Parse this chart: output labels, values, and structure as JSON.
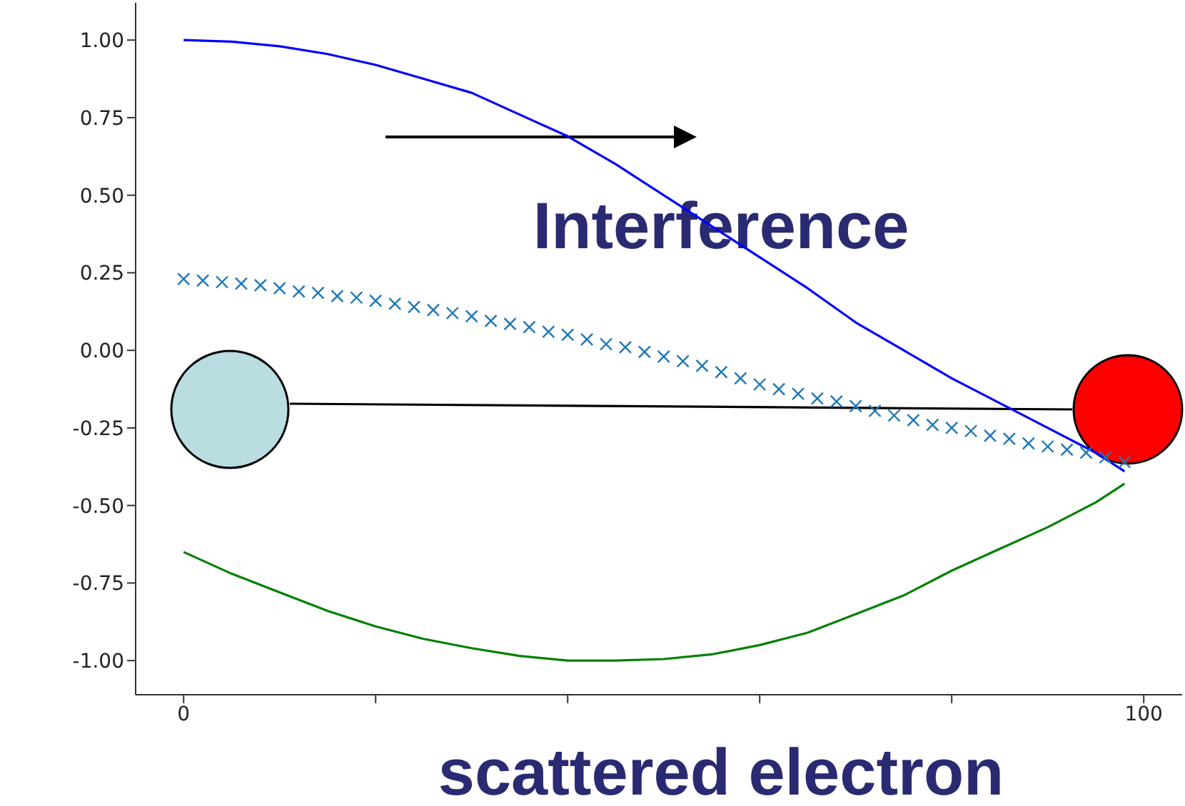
{
  "chart_data": {
    "type": "line",
    "annotations": [
      "Interference",
      "scattered electron"
    ],
    "xlim": [
      -5,
      104
    ],
    "ylim": [
      -1.11,
      1.12
    ],
    "xticks": [
      0,
      {
        "value": 20,
        "label": null
      },
      {
        "value": 40,
        "label": null
      },
      {
        "value": 60,
        "label": null
      },
      {
        "value": 80,
        "label": null
      },
      100
    ],
    "yticks": [
      {
        "value": -1,
        "label": "-1.00"
      },
      {
        "value": -0.75,
        "label": "-0.75"
      },
      {
        "value": -0.5,
        "label": "-0.50"
      },
      {
        "value": -0.25,
        "label": "-0.25"
      },
      {
        "value": 0,
        "label": "0.00"
      },
      {
        "value": 0.25,
        "label": "0.25"
      },
      {
        "value": 0.5,
        "label": "0.50"
      },
      {
        "value": 0.75,
        "label": "0.75"
      },
      {
        "value": 1,
        "label": "1.00"
      }
    ],
    "grid": false,
    "legend": false,
    "series": [
      {
        "color": "#0000ff",
        "x": [
          0,
          5,
          10,
          15,
          20,
          25,
          30,
          35,
          40,
          45,
          50,
          55,
          60,
          65,
          70,
          75,
          80,
          85,
          90,
          95,
          98
        ],
        "values": [
          1.0,
          0.995,
          0.98,
          0.955,
          0.92,
          0.875,
          0.83,
          0.76,
          0.69,
          0.6,
          0.5,
          0.4,
          0.3,
          0.2,
          0.09,
          0.0,
          -0.09,
          -0.17,
          -0.25,
          -0.33,
          -0.39
        ]
      },
      {
        "type": "scatter",
        "marker": "cross",
        "color": "#1f77b4",
        "x": [
          0,
          2,
          4,
          6,
          8,
          10,
          12,
          14,
          16,
          18,
          20,
          22,
          24,
          26,
          28,
          30,
          32,
          34,
          36,
          38,
          40,
          42,
          44,
          46,
          48,
          50,
          52,
          54,
          56,
          58,
          60,
          62,
          64,
          66,
          68,
          70,
          72,
          74,
          76,
          78,
          80,
          82,
          84,
          86,
          88,
          90,
          92,
          94,
          96,
          98
        ],
        "values": [
          0.23,
          0.225,
          0.22,
          0.215,
          0.21,
          0.2,
          0.19,
          0.185,
          0.175,
          0.17,
          0.16,
          0.15,
          0.14,
          0.13,
          0.12,
          0.11,
          0.095,
          0.085,
          0.075,
          0.06,
          0.05,
          0.035,
          0.02,
          0.01,
          -0.005,
          -0.02,
          -0.035,
          -0.05,
          -0.07,
          -0.09,
          -0.11,
          -0.125,
          -0.14,
          -0.155,
          -0.165,
          -0.18,
          -0.195,
          -0.21,
          -0.225,
          -0.24,
          -0.25,
          -0.26,
          -0.275,
          -0.285,
          -0.3,
          -0.31,
          -0.32,
          -0.33,
          -0.345,
          -0.36
        ]
      },
      {
        "color": "#008000",
        "x": [
          0,
          5,
          10,
          15,
          20,
          25,
          30,
          35,
          40,
          45,
          50,
          55,
          60,
          65,
          70,
          75,
          80,
          85,
          90,
          95,
          98
        ],
        "values": [
          -0.65,
          -0.72,
          -0.78,
          -0.84,
          -0.89,
          -0.93,
          -0.96,
          -0.985,
          -1.0,
          -1.0,
          -0.995,
          -0.98,
          -0.95,
          -0.91,
          -0.85,
          -0.79,
          -0.71,
          -0.64,
          -0.57,
          -0.49,
          -0.43
        ]
      }
    ]
  }
}
